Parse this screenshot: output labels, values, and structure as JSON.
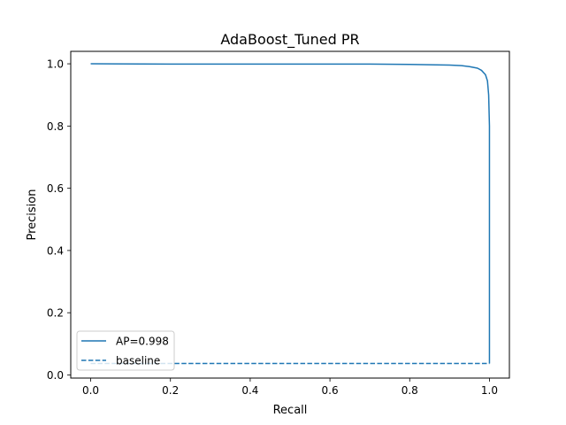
{
  "chart_data": {
    "type": "line",
    "title": "AdaBoost_Tuned PR",
    "xlabel": "Recall",
    "ylabel": "Precision",
    "xlim": [
      -0.05,
      1.05
    ],
    "ylim": [
      -0.01,
      1.04
    ],
    "xticks": [
      0.0,
      0.2,
      0.4,
      0.6,
      0.8,
      1.0
    ],
    "xtick_labels": [
      "0.0",
      "0.2",
      "0.4",
      "0.6",
      "0.8",
      "1.0"
    ],
    "yticks": [
      0.0,
      0.2,
      0.4,
      0.6,
      0.8,
      1.0
    ],
    "ytick_labels": [
      "0.0",
      "0.2",
      "0.4",
      "0.6",
      "0.8",
      "1.0"
    ],
    "grid": false,
    "legend_position": "lower-left",
    "series": [
      {
        "name": "AP=0.998",
        "style": "solid",
        "color": "#1f77b4",
        "x": [
          0.0,
          0.2,
          0.4,
          0.6,
          0.7,
          0.8,
          0.85,
          0.9,
          0.93,
          0.95,
          0.97,
          0.98,
          0.99,
          0.995,
          0.998,
          1.0,
          1.0
        ],
        "y": [
          1.0,
          0.999,
          0.999,
          0.999,
          0.999,
          0.998,
          0.997,
          0.996,
          0.994,
          0.991,
          0.986,
          0.979,
          0.965,
          0.945,
          0.9,
          0.8,
          0.037
        ]
      },
      {
        "name": "baseline",
        "style": "dashed",
        "color": "#1f77b4",
        "x": [
          0.0,
          1.0
        ],
        "y": [
          0.037,
          0.037
        ]
      }
    ]
  }
}
